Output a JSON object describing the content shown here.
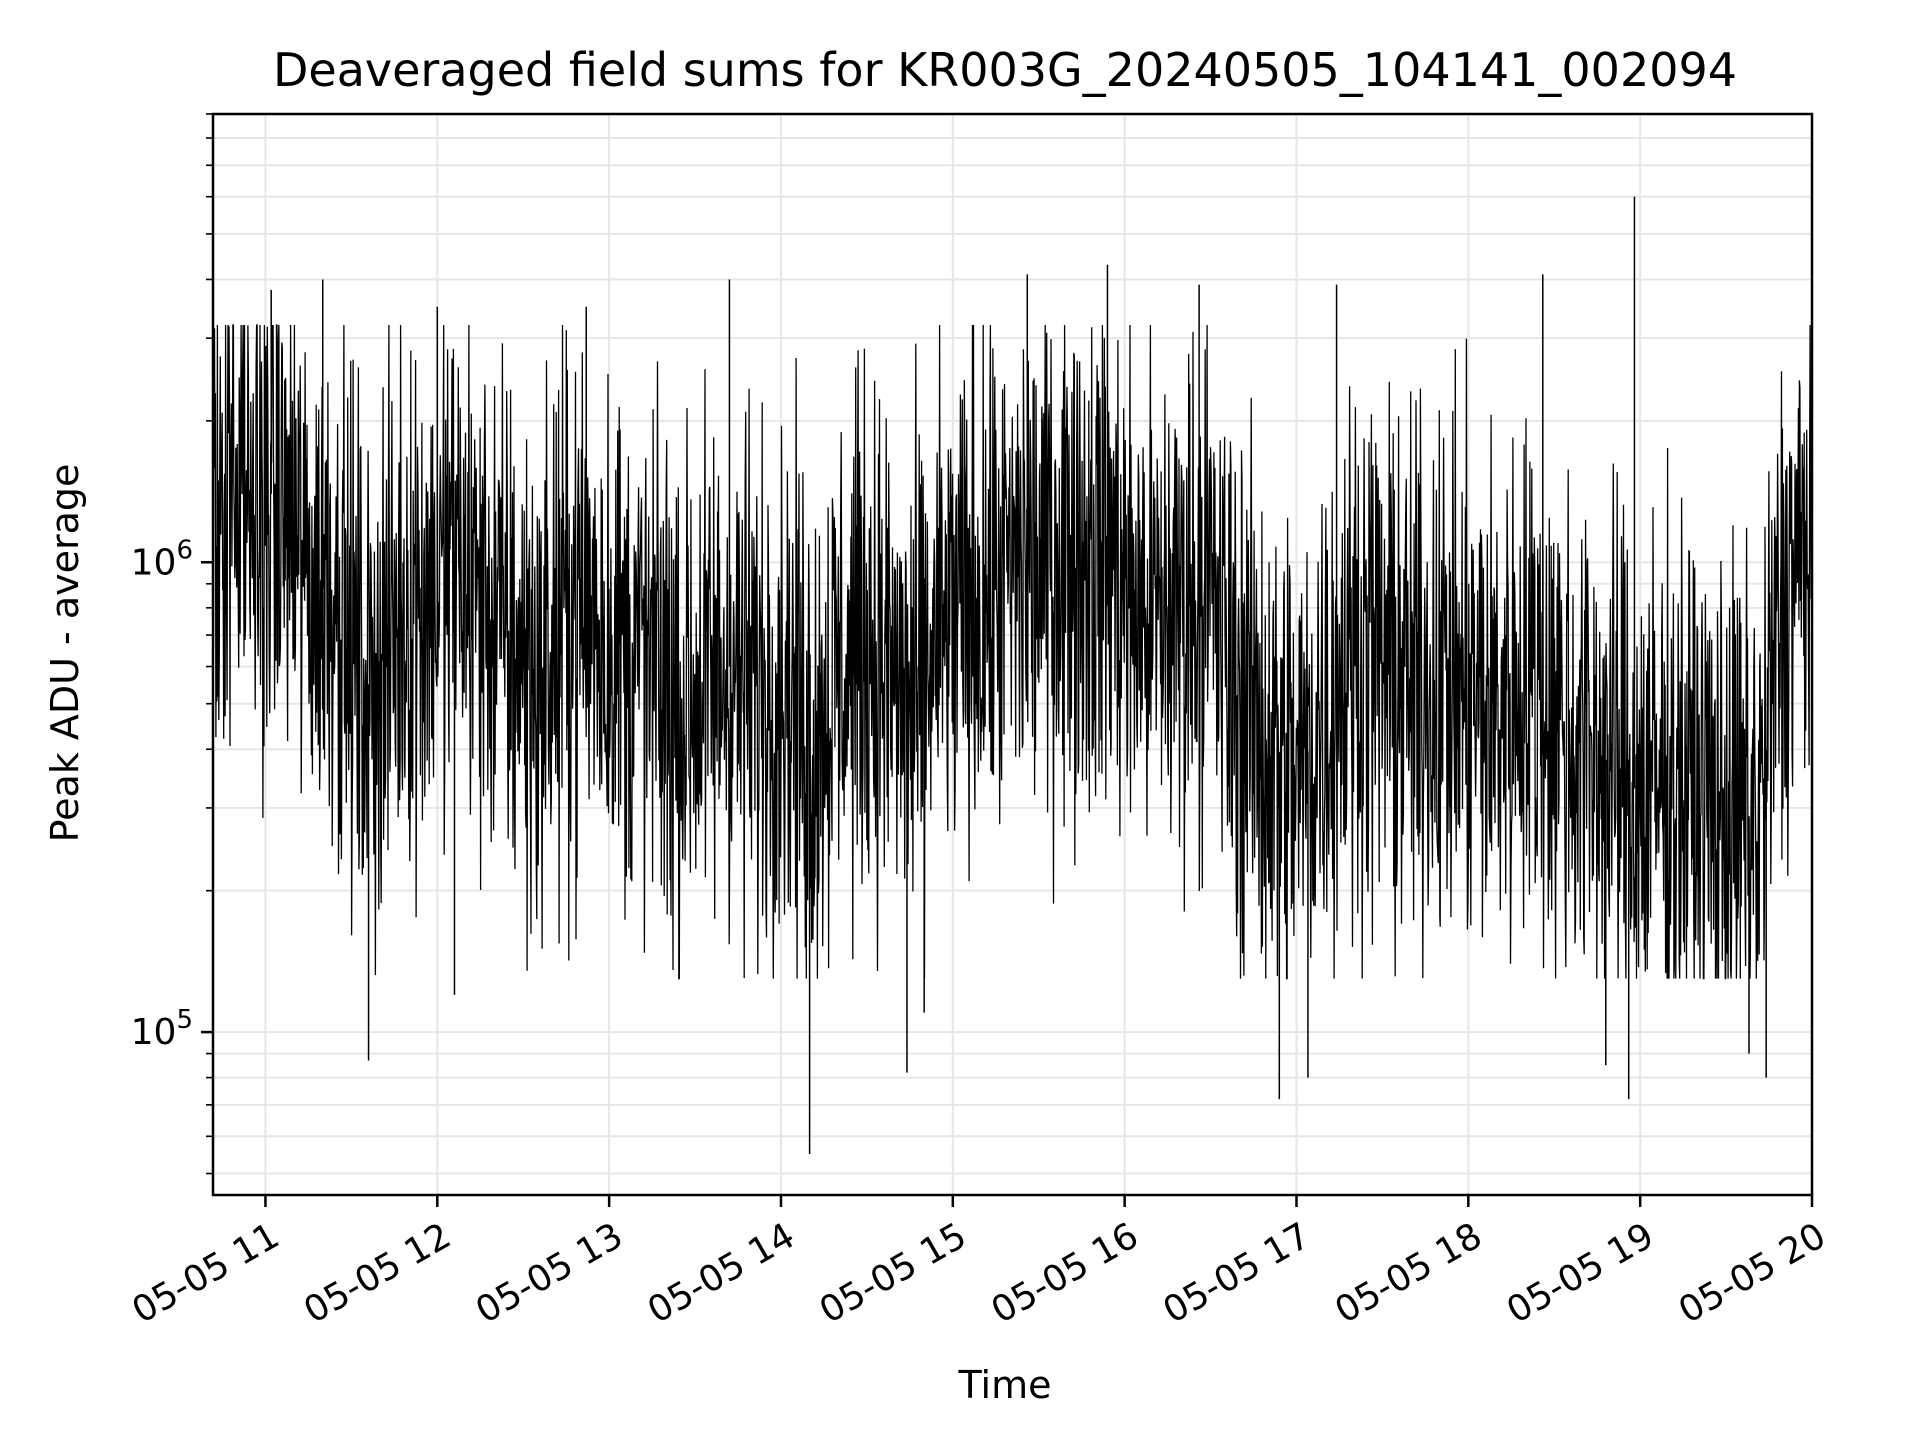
{
  "chart_data": {
    "type": "line",
    "title": "Deaveraged field sums for KR003G_20240505_104141_002094",
    "xlabel": "Time",
    "ylabel": "Peak ADU - average",
    "yscale": "log",
    "ylim": [
      45000,
      9000000
    ],
    "xlim": [
      "2024-05-05 10:41:41",
      "2024-05-05 20:00:00"
    ],
    "x_ticks": [
      {
        "value": "2024-05-05 11:00",
        "label": "05-05 11"
      },
      {
        "value": "2024-05-05 12:00",
        "label": "05-05 12"
      },
      {
        "value": "2024-05-05 13:00",
        "label": "05-05 13"
      },
      {
        "value": "2024-05-05 14:00",
        "label": "05-05 14"
      },
      {
        "value": "2024-05-05 15:00",
        "label": "05-05 15"
      },
      {
        "value": "2024-05-05 16:00",
        "label": "05-05 16"
      },
      {
        "value": "2024-05-05 17:00",
        "label": "05-05 17"
      },
      {
        "value": "2024-05-05 18:00",
        "label": "05-05 18"
      },
      {
        "value": "2024-05-05 19:00",
        "label": "05-05 19"
      },
      {
        "value": "2024-05-05 20:00",
        "label": "05-05 20"
      }
    ],
    "y_ticks": [
      {
        "value": 100000,
        "base": "10",
        "exp": "5"
      },
      {
        "value": 1000000,
        "base": "10",
        "exp": "6"
      }
    ],
    "grid": true,
    "line_color": "#000000",
    "grid_color": "#e6e6e6",
    "series": [
      {
        "points": [
          [
            "2024-05-05 10:42",
            1200000
          ],
          [
            "2024-05-05 10:48",
            1400000
          ],
          [
            "2024-05-05 10:54",
            1100000
          ],
          [
            "2024-05-05 11:00",
            1450000
          ],
          [
            "2024-05-05 11:06",
            1300000
          ],
          [
            "2024-05-05 11:12",
            1050000
          ],
          [
            "2024-05-05 11:18",
            850000
          ],
          [
            "2024-05-05 11:24",
            950000
          ],
          [
            "2024-05-05 11:30",
            650000
          ],
          [
            "2024-05-05 11:36",
            550000
          ],
          [
            "2024-05-05 11:42",
            650000
          ],
          [
            "2024-05-05 11:48",
            780000
          ],
          [
            "2024-05-05 11:54",
            880000
          ],
          [
            "2024-05-05 12:00",
            850000
          ],
          [
            "2024-05-05 12:06",
            1050000
          ],
          [
            "2024-05-05 12:12",
            900000
          ],
          [
            "2024-05-05 12:18",
            800000
          ],
          [
            "2024-05-05 12:24",
            700000
          ],
          [
            "2024-05-05 12:30",
            600000
          ],
          [
            "2024-05-05 12:36",
            550000
          ],
          [
            "2024-05-05 12:42",
            700000
          ],
          [
            "2024-05-05 12:48",
            820000
          ],
          [
            "2024-05-05 12:54",
            780000
          ],
          [
            "2024-05-05 13:00",
            700000
          ],
          [
            "2024-05-05 13:06",
            650000
          ],
          [
            "2024-05-05 13:12",
            620000
          ],
          [
            "2024-05-05 13:18",
            560000
          ],
          [
            "2024-05-05 13:24",
            500000
          ],
          [
            "2024-05-05 13:30",
            520000
          ],
          [
            "2024-05-05 13:36",
            560000
          ],
          [
            "2024-05-05 13:42",
            600000
          ],
          [
            "2024-05-05 13:48",
            560000
          ],
          [
            "2024-05-05 13:54",
            540000
          ],
          [
            "2024-05-05 14:00",
            600000
          ],
          [
            "2024-05-05 14:06",
            480000
          ],
          [
            "2024-05-05 14:12",
            420000
          ],
          [
            "2024-05-05 14:18",
            560000
          ],
          [
            "2024-05-05 14:24",
            620000
          ],
          [
            "2024-05-05 14:30",
            700000
          ],
          [
            "2024-05-05 14:36",
            600000
          ],
          [
            "2024-05-05 14:42",
            520000
          ],
          [
            "2024-05-05 14:48",
            480000
          ],
          [
            "2024-05-05 14:54",
            680000
          ],
          [
            "2024-05-05 15:00",
            740000
          ],
          [
            "2024-05-05 15:06",
            800000
          ],
          [
            "2024-05-05 15:12",
            850000
          ],
          [
            "2024-05-05 15:18",
            900000
          ],
          [
            "2024-05-05 15:24",
            950000
          ],
          [
            "2024-05-05 15:30",
            1000000
          ],
          [
            "2024-05-05 15:36",
            1050000
          ],
          [
            "2024-05-05 15:42",
            1100000
          ],
          [
            "2024-05-05 15:48",
            1050000
          ],
          [
            "2024-05-05 15:54",
            1000000
          ],
          [
            "2024-05-05 16:00",
            900000
          ],
          [
            "2024-05-05 16:06",
            800000
          ],
          [
            "2024-05-05 16:12",
            750000
          ],
          [
            "2024-05-05 16:18",
            820000
          ],
          [
            "2024-05-05 16:24",
            900000
          ],
          [
            "2024-05-05 16:30",
            880000
          ],
          [
            "2024-05-05 16:36",
            600000
          ],
          [
            "2024-05-05 16:42",
            500000
          ],
          [
            "2024-05-05 16:48",
            420000
          ],
          [
            "2024-05-05 16:54",
            380000
          ],
          [
            "2024-05-05 17:00",
            350000
          ],
          [
            "2024-05-05 17:06",
            420000
          ],
          [
            "2024-05-05 17:12",
            520000
          ],
          [
            "2024-05-05 17:18",
            620000
          ],
          [
            "2024-05-05 17:24",
            680000
          ],
          [
            "2024-05-05 17:30",
            600000
          ],
          [
            "2024-05-05 17:36",
            560000
          ],
          [
            "2024-05-05 17:42",
            520000
          ],
          [
            "2024-05-05 17:48",
            580000
          ],
          [
            "2024-05-05 17:54",
            540000
          ],
          [
            "2024-05-05 18:00",
            520000
          ],
          [
            "2024-05-05 18:06",
            480000
          ],
          [
            "2024-05-05 18:12",
            500000
          ],
          [
            "2024-05-05 18:18",
            560000
          ],
          [
            "2024-05-05 18:24",
            540000
          ],
          [
            "2024-05-05 18:30",
            480000
          ],
          [
            "2024-05-05 18:36",
            430000
          ],
          [
            "2024-05-05 18:42",
            400000
          ],
          [
            "2024-05-05 18:48",
            380000
          ],
          [
            "2024-05-05 18:54",
            350000
          ],
          [
            "2024-05-05 19:00",
            320000
          ],
          [
            "2024-05-05 19:06",
            330000
          ],
          [
            "2024-05-05 19:12",
            340000
          ],
          [
            "2024-05-05 19:18",
            320000
          ],
          [
            "2024-05-05 19:24",
            300000
          ],
          [
            "2024-05-05 19:30",
            290000
          ],
          [
            "2024-05-05 19:36",
            280000
          ],
          [
            "2024-05-05 19:42",
            300000
          ],
          [
            "2024-05-05 19:48",
            700000
          ],
          [
            "2024-05-05 19:54",
            1000000
          ],
          [
            "2024-05-05 20:00",
            1100000
          ]
        ],
        "spikes": [
          [
            "2024-05-05 11:02",
            3800000
          ],
          [
            "2024-05-05 11:20",
            4000000
          ],
          [
            "2024-05-05 11:36",
            87000
          ],
          [
            "2024-05-05 12:00",
            3500000
          ],
          [
            "2024-05-05 12:06",
            120000
          ],
          [
            "2024-05-05 12:52",
            3500000
          ],
          [
            "2024-05-05 13:42",
            4000000
          ],
          [
            "2024-05-05 14:10",
            55000
          ],
          [
            "2024-05-05 14:44",
            82000
          ],
          [
            "2024-05-05 14:50",
            110000
          ],
          [
            "2024-05-05 15:26",
            4100000
          ],
          [
            "2024-05-05 15:54",
            4300000
          ],
          [
            "2024-05-05 16:26",
            3900000
          ],
          [
            "2024-05-05 16:54",
            72000
          ],
          [
            "2024-05-05 17:04",
            80000
          ],
          [
            "2024-05-05 17:14",
            3900000
          ],
          [
            "2024-05-05 18:26",
            4100000
          ],
          [
            "2024-05-05 18:48",
            85000
          ],
          [
            "2024-05-05 18:58",
            6000000
          ],
          [
            "2024-05-05 18:56",
            72000
          ],
          [
            "2024-05-05 19:38",
            90000
          ],
          [
            "2024-05-05 19:44",
            80000
          ]
        ]
      }
    ]
  }
}
